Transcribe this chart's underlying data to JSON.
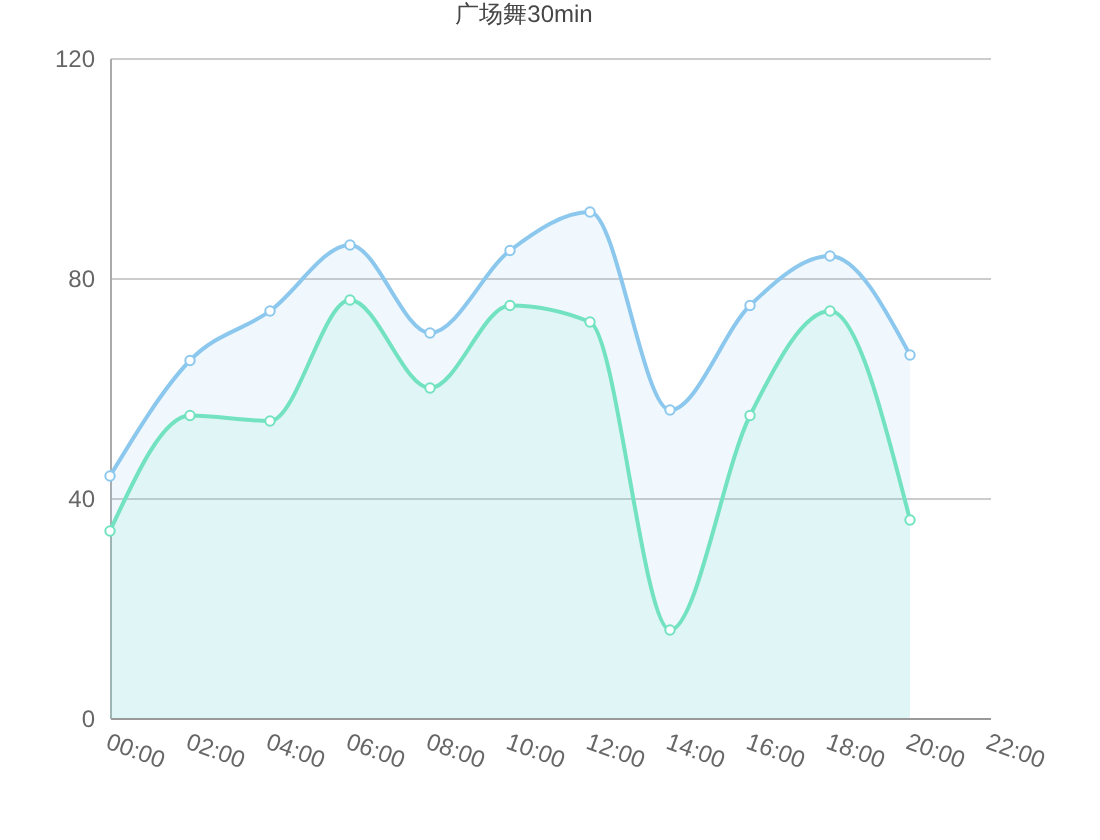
{
  "chart_data": {
    "type": "area",
    "title": "广场舞30min",
    "x": [
      0,
      2,
      4,
      6,
      8,
      10,
      12,
      14,
      16,
      18,
      20
    ],
    "xlim": [
      0,
      22
    ],
    "xticks": [
      {
        "value": 0,
        "label": "00:00"
      },
      {
        "value": 2,
        "label": "02:00"
      },
      {
        "value": 4,
        "label": "04:00"
      },
      {
        "value": 6,
        "label": "06:00"
      },
      {
        "value": 8,
        "label": "08:00"
      },
      {
        "value": 10,
        "label": "10:00"
      },
      {
        "value": 12,
        "label": "12:00"
      },
      {
        "value": 14,
        "label": "14:00"
      },
      {
        "value": 16,
        "label": "16:00"
      },
      {
        "value": 18,
        "label": "18:00"
      },
      {
        "value": 20,
        "label": "20:00"
      },
      {
        "value": 22,
        "label": "22:00"
      }
    ],
    "ylim": [
      0,
      120
    ],
    "yticks": [
      0,
      40,
      80,
      120
    ],
    "series": [
      {
        "color": "#8cc8ee",
        "values": [
          44,
          65,
          74,
          86,
          70,
          85,
          92,
          56,
          75,
          84,
          66
        ]
      },
      {
        "color": "#72e2c0",
        "values": [
          34,
          55,
          54,
          76,
          60,
          75,
          72,
          16,
          55,
          74,
          36
        ]
      }
    ],
    "grid": "y",
    "marker": "circle"
  }
}
